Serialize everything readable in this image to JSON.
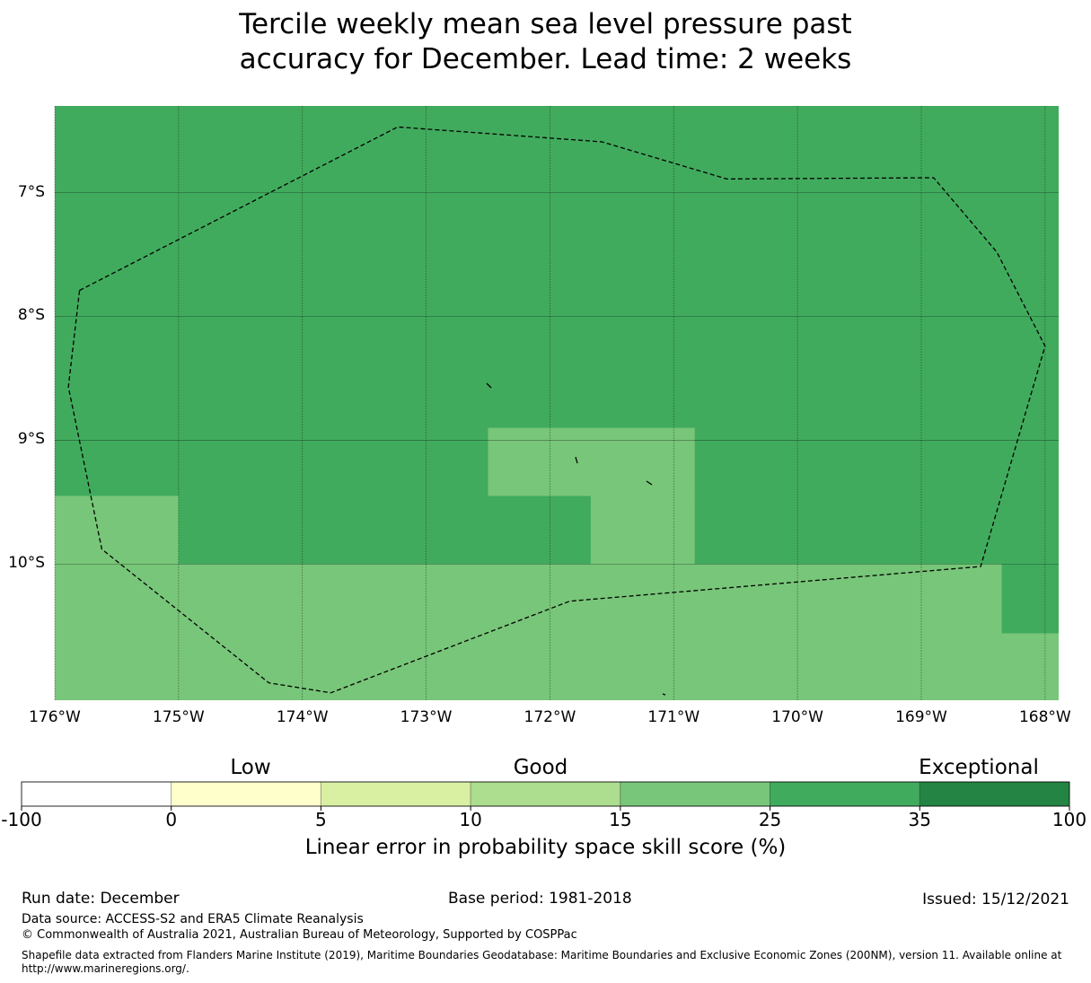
{
  "title_lines": [
    "Tercile weekly mean sea level pressure past",
    "accuracy for December. Lead time: 2 weeks"
  ],
  "chart_data": {
    "type": "heatmap",
    "title": "Tercile weekly mean sea level pressure past accuracy for December. Lead time: 2 weeks",
    "extent": {
      "lon": [
        -176.0,
        -167.89
      ],
      "lat": [
        -11.1,
        -6.3
      ]
    },
    "x_ticks": [
      {
        "v": -176,
        "label": "176°W"
      },
      {
        "v": -175,
        "label": "175°W"
      },
      {
        "v": -174,
        "label": "174°W"
      },
      {
        "v": -173,
        "label": "173°W"
      },
      {
        "v": -172,
        "label": "172°W"
      },
      {
        "v": -171,
        "label": "171°W"
      },
      {
        "v": -170,
        "label": "170°W"
      },
      {
        "v": -169,
        "label": "169°W"
      },
      {
        "v": -168,
        "label": "168°W"
      }
    ],
    "y_ticks": [
      {
        "v": -7,
        "label": "7°S"
      },
      {
        "v": -8,
        "label": "8°S"
      },
      {
        "v": -9,
        "label": "9°S"
      },
      {
        "v": -10,
        "label": "10°S"
      }
    ],
    "background_class": "25-35",
    "cells": [
      {
        "lon": [
          -176.0,
          -175.0
        ],
        "lat": [
          -10.0,
          -9.45
        ],
        "class": "15-25"
      },
      {
        "lon": [
          -176.0,
          -168.35
        ],
        "lat": [
          -11.1,
          -10.0
        ],
        "class": "15-25"
      },
      {
        "lon": [
          -168.35,
          -167.89
        ],
        "lat": [
          -11.1,
          -10.56
        ],
        "class": "15-25"
      },
      {
        "lon": [
          -172.5,
          -170.83
        ],
        "lat": [
          -9.45,
          -8.9
        ],
        "class": "15-25"
      },
      {
        "lon": [
          -171.67,
          -170.83
        ],
        "lat": [
          -10.0,
          -9.45
        ],
        "class": "15-25"
      }
    ],
    "eez_boundary": [
      [
        -175.8,
        -7.79
      ],
      [
        -173.23,
        -6.47
      ],
      [
        -171.58,
        -6.59
      ],
      [
        -170.57,
        -6.89
      ],
      [
        -168.9,
        -6.88
      ],
      [
        -168.39,
        -7.48
      ],
      [
        -168.0,
        -8.24
      ],
      [
        -168.52,
        -10.02
      ],
      [
        -171.84,
        -10.3
      ],
      [
        -173.77,
        -11.04
      ],
      [
        -174.27,
        -10.96
      ],
      [
        -175.62,
        -9.88
      ],
      [
        -175.89,
        -8.57
      ],
      [
        -175.8,
        -7.79
      ]
    ],
    "colorbar": {
      "label": "Linear error in probability space skill score (%)",
      "bounds": [
        "-100",
        "0",
        "5",
        "10",
        "15",
        "25",
        "35",
        "100"
      ],
      "colors": [
        "#ffffff",
        "#ffffcc",
        "#d9f0a3",
        "#addd8e",
        "#78c679",
        "#41ab5d",
        "#238443"
      ],
      "categories": [
        "Low",
        "Good",
        "Exceptional"
      ]
    }
  },
  "class_colors": {
    "15-25": "#78c679",
    "25-35": "#41ab5d"
  },
  "footer": {
    "run_date": "Run date: December",
    "base_period": "Base period: 1981-2018",
    "issued": "Issued: 15/12/2021",
    "data_source": "Data source: ACCESS-S2 and ERA5 Climate Reanalysis",
    "copyright": "© Commonwealth of Australia 2021, Australian Bureau of Meteorology, Supported by COSPPac",
    "shapefile": "Shapefile data extracted from Flanders Marine Institute (2019), Maritime Boundaries Geodatabase: Maritime Boundaries and Exclusive Economic Zones (200NM), version 11. Available online at http://www.marineregions.org/."
  }
}
